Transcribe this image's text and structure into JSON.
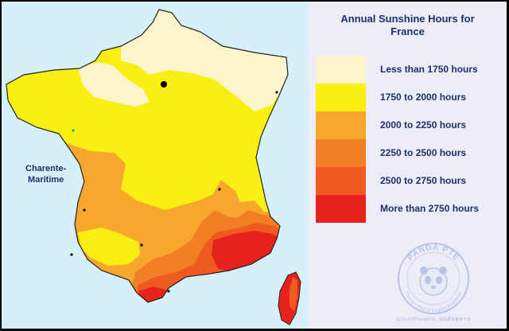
{
  "legend": {
    "title_line1": "Annual Sunshine Hours for",
    "title_line2": "France",
    "items": [
      {
        "label": "Less than 1750 hours",
        "color": "#fbf5c9"
      },
      {
        "label": "1750 to 2000 hours",
        "color": "#f9ef12"
      },
      {
        "label": "2000 to 2250 hours",
        "color": "#f7a72c"
      },
      {
        "label": "2250 to 2500 hours",
        "color": "#f27e26"
      },
      {
        "label": "2500 to 2750 hours",
        "color": "#ee5a1f"
      },
      {
        "label": "More than 2750 hours",
        "color": "#e7221c"
      }
    ]
  },
  "map": {
    "region_label_line1": "Charente-",
    "region_label_line2": "Maritime",
    "sea_color": "#d6f0f7"
  },
  "watermark": {
    "brand": "PANDA PTE",
    "tagline": "Pearson Test of English Academic",
    "footer": "关注公众号PandaPTE，获取更多备考干货"
  }
}
